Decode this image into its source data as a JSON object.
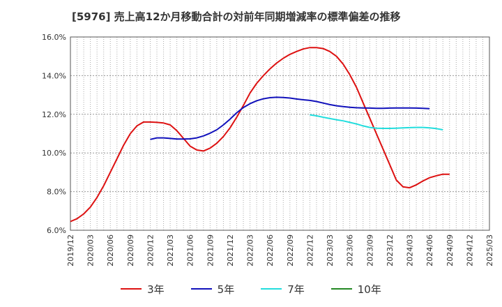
{
  "chart_data": {
    "type": "line",
    "title": "[5976]  売上高12か月移動合計の対前年同期増減率の標準偏差の推移",
    "xlabel": "",
    "ylabel": "",
    "ylim": [
      6.0,
      16.0
    ],
    "y_ticks": [
      "6.0%",
      "8.0%",
      "10.0%",
      "12.0%",
      "14.0%",
      "16.0%"
    ],
    "x_ticks": [
      "2019/12",
      "2020/03",
      "2020/06",
      "2020/09",
      "2020/12",
      "2021/03",
      "2021/06",
      "2021/09",
      "2021/12",
      "2022/03",
      "2022/06",
      "2022/09",
      "2022/12",
      "2023/03",
      "2023/06",
      "2023/09",
      "2023/12",
      "2024/03",
      "2024/06",
      "2024/09",
      "2024/12",
      "2025/03"
    ],
    "grid": true,
    "legend_position": "bottom",
    "series": [
      {
        "name": "3年",
        "color": "#dd1111",
        "points": [
          [
            "2019/12",
            6.45
          ],
          [
            "2020/01",
            6.6
          ],
          [
            "2020/02",
            6.85
          ],
          [
            "2020/03",
            7.2
          ],
          [
            "2020/04",
            7.7
          ],
          [
            "2020/05",
            8.3
          ],
          [
            "2020/06",
            9.0
          ],
          [
            "2020/07",
            9.7
          ],
          [
            "2020/08",
            10.4
          ],
          [
            "2020/09",
            11.0
          ],
          [
            "2020/10",
            11.4
          ],
          [
            "2020/11",
            11.6
          ],
          [
            "2020/12",
            11.6
          ],
          [
            "2021/01",
            11.58
          ],
          [
            "2021/02",
            11.55
          ],
          [
            "2021/03",
            11.45
          ],
          [
            "2021/04",
            11.15
          ],
          [
            "2021/05",
            10.75
          ],
          [
            "2021/06",
            10.35
          ],
          [
            "2021/07",
            10.15
          ],
          [
            "2021/08",
            10.1
          ],
          [
            "2021/09",
            10.25
          ],
          [
            "2021/10",
            10.5
          ],
          [
            "2021/11",
            10.85
          ],
          [
            "2021/12",
            11.3
          ],
          [
            "2022/01",
            11.85
          ],
          [
            "2022/02",
            12.45
          ],
          [
            "2022/03",
            13.1
          ],
          [
            "2022/04",
            13.6
          ],
          [
            "2022/05",
            14.0
          ],
          [
            "2022/06",
            14.35
          ],
          [
            "2022/07",
            14.65
          ],
          [
            "2022/08",
            14.9
          ],
          [
            "2022/09",
            15.1
          ],
          [
            "2022/10",
            15.25
          ],
          [
            "2022/11",
            15.38
          ],
          [
            "2022/12",
            15.45
          ],
          [
            "2023/01",
            15.45
          ],
          [
            "2023/02",
            15.4
          ],
          [
            "2023/03",
            15.25
          ],
          [
            "2023/04",
            15.0
          ],
          [
            "2023/05",
            14.6
          ],
          [
            "2023/06",
            14.05
          ],
          [
            "2023/07",
            13.4
          ],
          [
            "2023/08",
            12.6
          ],
          [
            "2023/09",
            11.8
          ],
          [
            "2023/10",
            11.0
          ],
          [
            "2023/11",
            10.2
          ],
          [
            "2023/12",
            9.4
          ],
          [
            "2024/01",
            8.6
          ],
          [
            "2024/02",
            8.25
          ],
          [
            "2024/03",
            8.2
          ],
          [
            "2024/04",
            8.35
          ],
          [
            "2024/05",
            8.55
          ],
          [
            "2024/06",
            8.72
          ],
          [
            "2024/07",
            8.82
          ],
          [
            "2024/08",
            8.9
          ],
          [
            "2024/09",
            8.9
          ]
        ]
      },
      {
        "name": "5年",
        "color": "#1111bb",
        "points": [
          [
            "2020/12",
            10.7
          ],
          [
            "2021/01",
            10.78
          ],
          [
            "2021/02",
            10.78
          ],
          [
            "2021/03",
            10.75
          ],
          [
            "2021/04",
            10.72
          ],
          [
            "2021/05",
            10.72
          ],
          [
            "2021/06",
            10.73
          ],
          [
            "2021/07",
            10.78
          ],
          [
            "2021/08",
            10.88
          ],
          [
            "2021/09",
            11.02
          ],
          [
            "2021/10",
            11.2
          ],
          [
            "2021/11",
            11.45
          ],
          [
            "2021/12",
            11.75
          ],
          [
            "2022/01",
            12.08
          ],
          [
            "2022/02",
            12.35
          ],
          [
            "2022/03",
            12.55
          ],
          [
            "2022/04",
            12.7
          ],
          [
            "2022/05",
            12.8
          ],
          [
            "2022/06",
            12.86
          ],
          [
            "2022/07",
            12.88
          ],
          [
            "2022/08",
            12.87
          ],
          [
            "2022/09",
            12.84
          ],
          [
            "2022/10",
            12.79
          ],
          [
            "2022/11",
            12.75
          ],
          [
            "2022/12",
            12.72
          ],
          [
            "2023/01",
            12.66
          ],
          [
            "2023/02",
            12.58
          ],
          [
            "2023/03",
            12.5
          ],
          [
            "2023/04",
            12.44
          ],
          [
            "2023/05",
            12.4
          ],
          [
            "2023/06",
            12.36
          ],
          [
            "2023/07",
            12.34
          ],
          [
            "2023/08",
            12.33
          ],
          [
            "2023/09",
            12.32
          ],
          [
            "2023/10",
            12.31
          ],
          [
            "2023/11",
            12.31
          ],
          [
            "2023/12",
            12.32
          ],
          [
            "2024/01",
            12.33
          ],
          [
            "2024/02",
            12.33
          ],
          [
            "2024/03",
            12.33
          ],
          [
            "2024/04",
            12.32
          ],
          [
            "2024/05",
            12.31
          ],
          [
            "2024/06",
            12.29
          ]
        ]
      },
      {
        "name": "7年",
        "color": "#22dddd",
        "points": [
          [
            "2022/12",
            11.97
          ],
          [
            "2023/01",
            11.92
          ],
          [
            "2023/02",
            11.85
          ],
          [
            "2023/03",
            11.78
          ],
          [
            "2023/04",
            11.72
          ],
          [
            "2023/05",
            11.66
          ],
          [
            "2023/06",
            11.58
          ],
          [
            "2023/07",
            11.5
          ],
          [
            "2023/08",
            11.4
          ],
          [
            "2023/09",
            11.32
          ],
          [
            "2023/10",
            11.28
          ],
          [
            "2023/11",
            11.27
          ],
          [
            "2023/12",
            11.27
          ],
          [
            "2024/01",
            11.28
          ],
          [
            "2024/02",
            11.3
          ],
          [
            "2024/03",
            11.31
          ],
          [
            "2024/04",
            11.32
          ],
          [
            "2024/05",
            11.32
          ],
          [
            "2024/06",
            11.3
          ],
          [
            "2024/07",
            11.26
          ],
          [
            "2024/08",
            11.2
          ]
        ]
      },
      {
        "name": "10年",
        "color": "#228822",
        "points": []
      }
    ]
  }
}
